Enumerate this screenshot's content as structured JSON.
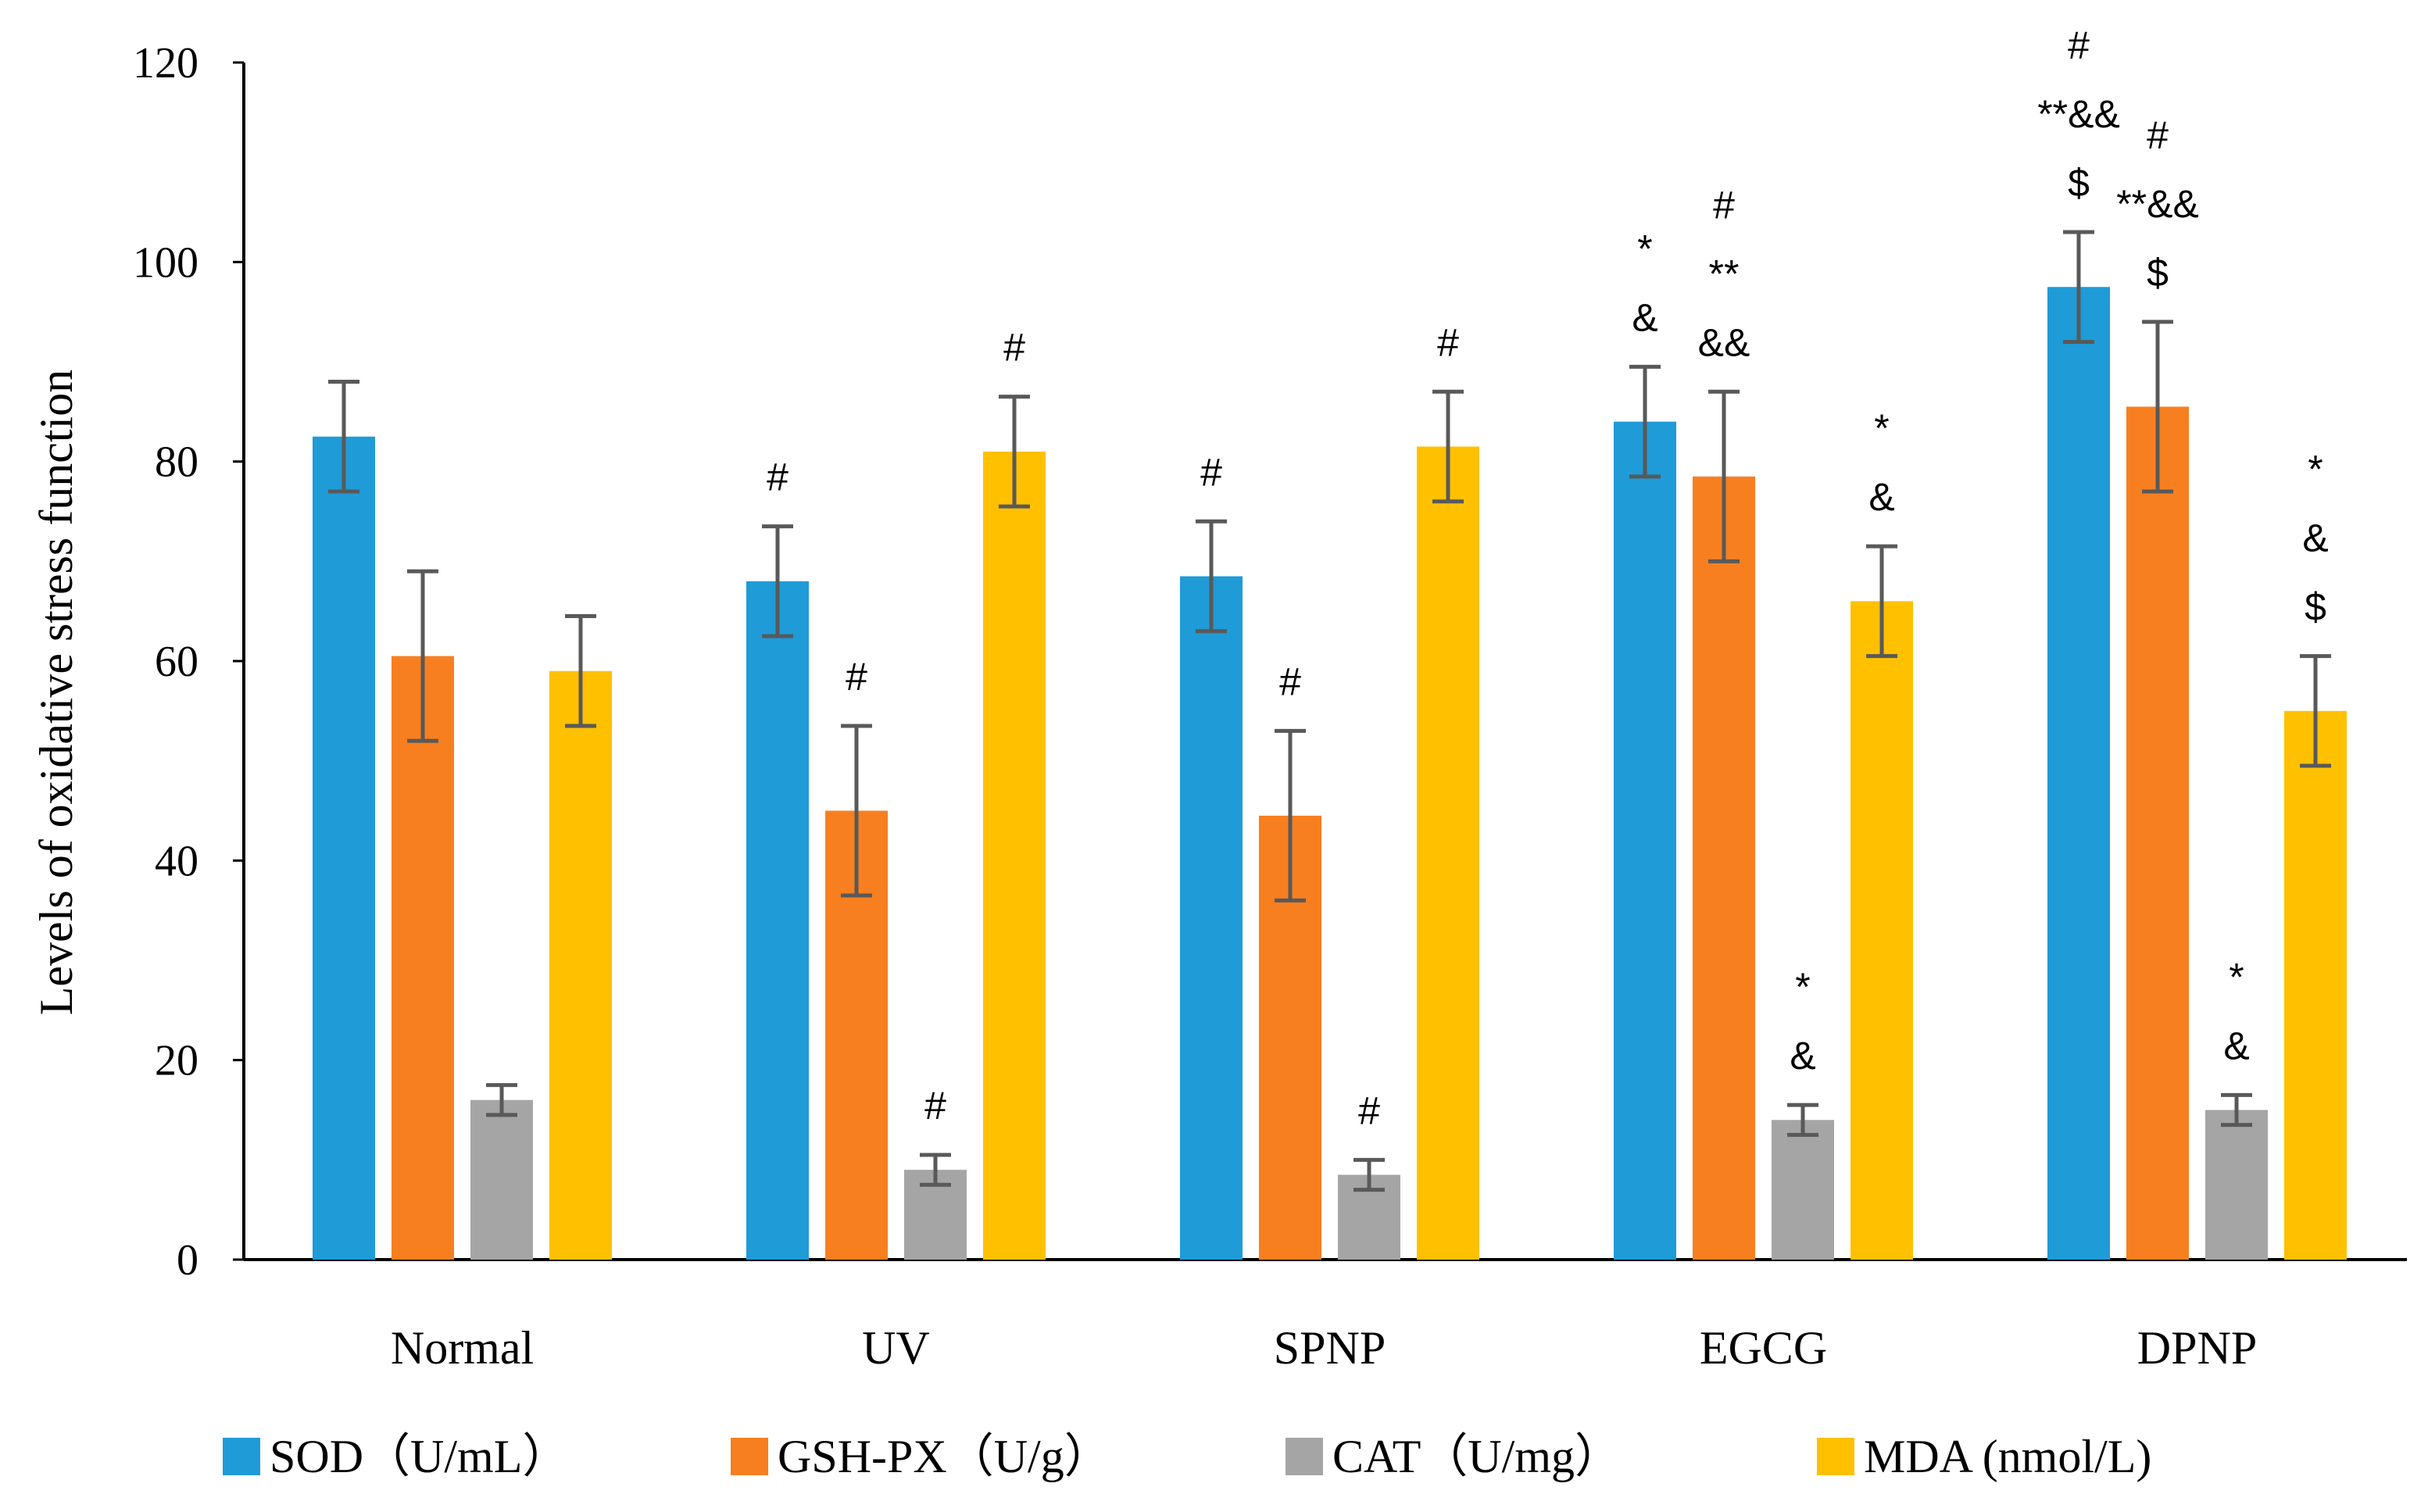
{
  "chart_data": {
    "type": "bar",
    "title": "",
    "xlabel": "",
    "ylabel": "Levels of oxidative stress function",
    "ylim": [
      0,
      120
    ],
    "yticks": [
      0,
      20,
      40,
      60,
      80,
      100,
      120
    ],
    "grid": false,
    "legend_position": "bottom",
    "categories": [
      "Normal",
      "UV",
      "SPNP",
      "EGCG",
      "DPNP"
    ],
    "series": [
      {
        "name": "SOD（U/mL）",
        "color": "#1f9bd7",
        "values": [
          82.5,
          68,
          68.5,
          84,
          97.5
        ],
        "errors": [
          5.5,
          5.5,
          5.5,
          5.5,
          5.5
        ],
        "annotations": [
          [],
          [
            "#"
          ],
          [
            "#"
          ],
          [
            "*",
            "&"
          ],
          [
            "#",
            "**&&",
            "$"
          ]
        ]
      },
      {
        "name": "GSH-PX（U/g）",
        "color": "#f77f20",
        "values": [
          60.5,
          45,
          44.5,
          78.5,
          85.5
        ],
        "errors": [
          8.5,
          8.5,
          8.5,
          8.5,
          8.5
        ],
        "annotations": [
          [],
          [
            "#"
          ],
          [
            "#"
          ],
          [
            "#",
            "**",
            "&&"
          ],
          [
            "#",
            "**&&",
            "$"
          ]
        ]
      },
      {
        "name": "CAT（U/mg）",
        "color": "#a5a5a5",
        "values": [
          16,
          9,
          8.5,
          14,
          15
        ],
        "errors": [
          1.5,
          1.5,
          1.5,
          1.5,
          1.5
        ],
        "annotations": [
          [],
          [
            "#"
          ],
          [
            "#"
          ],
          [
            "*",
            "&"
          ],
          [
            "*",
            "&"
          ]
        ]
      },
      {
        "name": "MDA (nmol/L)",
        "color": "#ffc000",
        "values": [
          59,
          81,
          81.5,
          66,
          55
        ],
        "errors": [
          5.5,
          5.5,
          5.5,
          5.5,
          5.5
        ],
        "annotations": [
          [],
          [
            "#"
          ],
          [
            "#"
          ],
          [
            "*",
            "&"
          ],
          [
            "*",
            "&",
            "$"
          ]
        ]
      }
    ]
  }
}
